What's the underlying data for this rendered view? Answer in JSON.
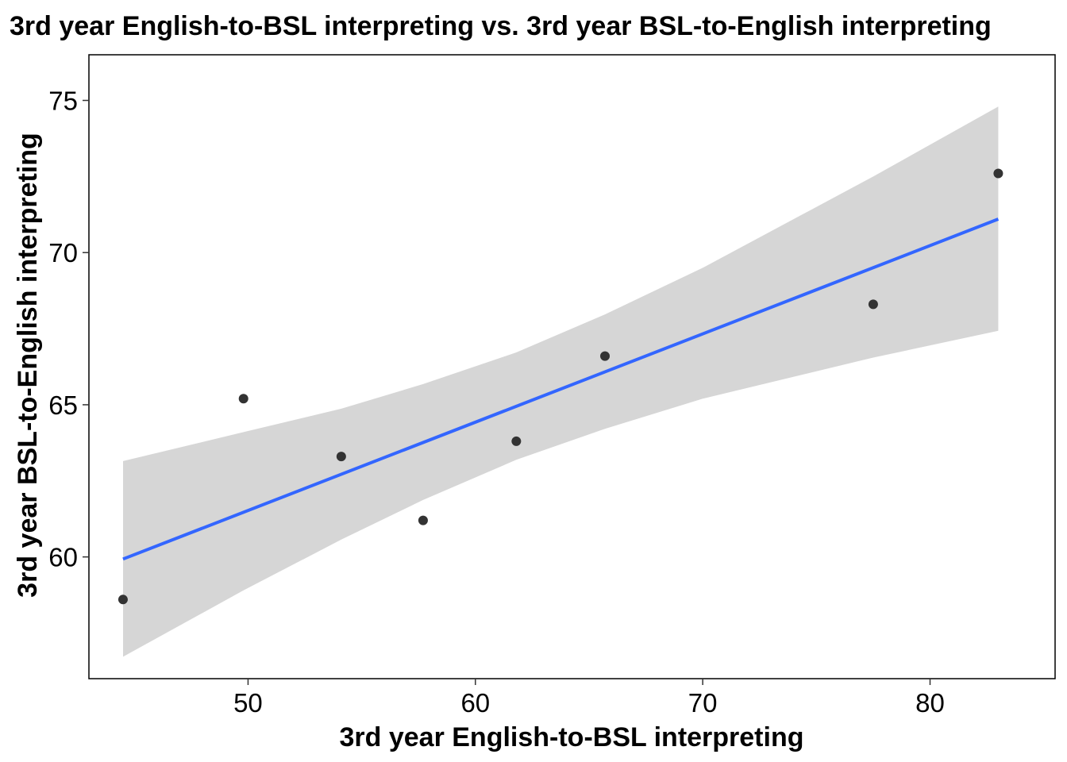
{
  "chart_data": {
    "type": "scatter",
    "title": "3rd year English-to-BSL interpreting vs. 3rd year BSL-to-English interpreting",
    "xlabel": "3rd year English-to-BSL interpreting",
    "ylabel": "3rd year BSL-to-English interpreting",
    "xlim": [
      43,
      85.5
    ],
    "ylim": [
      56,
      76.5
    ],
    "xticks": [
      50,
      60,
      70,
      80
    ],
    "yticks": [
      60,
      65,
      70,
      75
    ],
    "points": [
      {
        "x": 44.5,
        "y": 58.6
      },
      {
        "x": 49.8,
        "y": 65.2
      },
      {
        "x": 54.1,
        "y": 63.3
      },
      {
        "x": 57.7,
        "y": 61.2
      },
      {
        "x": 61.8,
        "y": 63.8
      },
      {
        "x": 65.7,
        "y": 66.6
      },
      {
        "x": 77.5,
        "y": 68.3
      },
      {
        "x": 83.0,
        "y": 72.6
      }
    ],
    "trend": {
      "method": "linear",
      "x": [
        44.5,
        83.0
      ],
      "y": [
        59.93,
        71.1
      ]
    },
    "confidence_band": {
      "x": [
        44.5,
        49.8,
        54.1,
        57.7,
        61.8,
        65.7,
        70.0,
        77.5,
        83.0
      ],
      "upper": [
        63.15,
        64.1,
        64.87,
        65.68,
        66.72,
        67.97,
        69.5,
        72.5,
        74.8
      ],
      "lower": [
        56.72,
        58.9,
        60.57,
        61.87,
        63.19,
        64.21,
        65.2,
        66.55,
        67.43
      ]
    },
    "colors": {
      "points": "#333333",
      "trend_line": "#3366ff",
      "band": "#d6d6d6"
    },
    "grid": false,
    "legend": "none"
  }
}
